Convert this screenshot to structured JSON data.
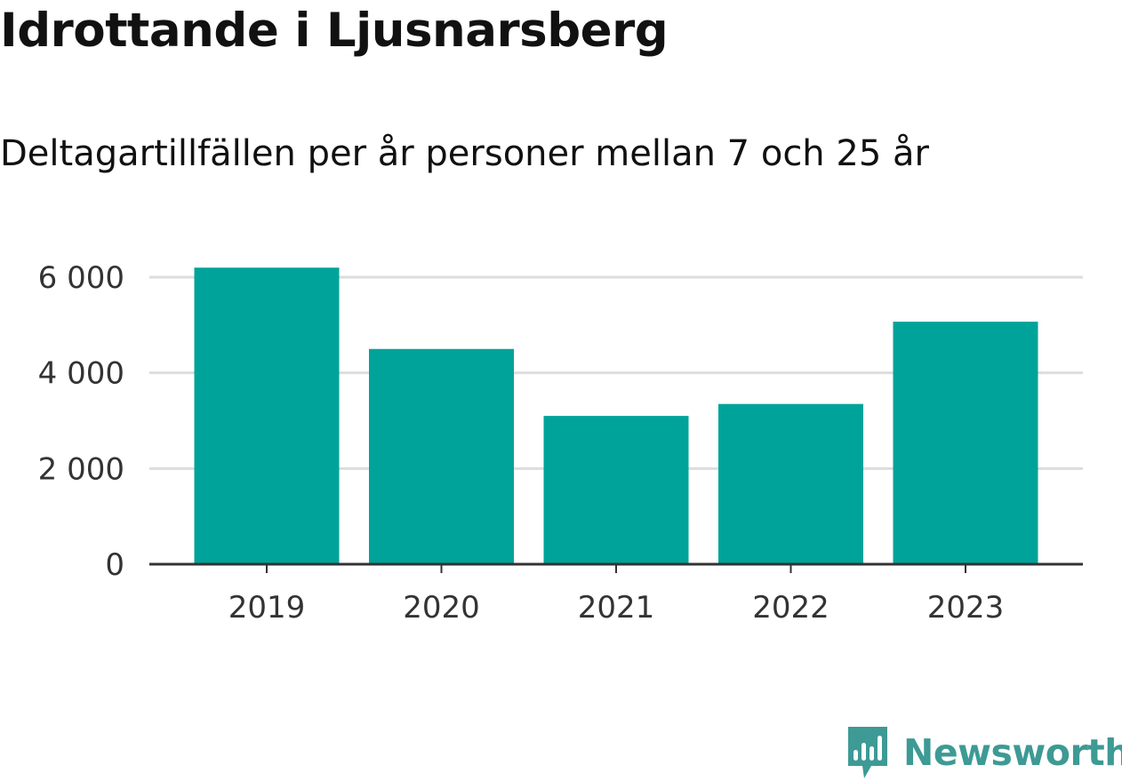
{
  "header": {
    "title": "Idrottande i Ljusnarsberg",
    "subtitle": "Deltagartillfällen per år personer mellan 7 och 25 år"
  },
  "chart_data": {
    "type": "bar",
    "categories": [
      "2019",
      "2020",
      "2021",
      "2022",
      "2023"
    ],
    "values": [
      6200,
      4500,
      3100,
      3350,
      5070
    ],
    "ylim": [
      0,
      6000
    ],
    "yticks": [
      0,
      2000,
      4000,
      6000
    ],
    "ytick_labels": [
      "0",
      "2 000",
      "4 000",
      "6 000"
    ],
    "grid": true,
    "bar_color": "#00a39a",
    "grid_color": "#dddddd",
    "axis_color": "#333333"
  },
  "brand": {
    "name": "Newsworthy",
    "color": "#3d9a94",
    "icon": "newsworthy-logo-icon"
  }
}
